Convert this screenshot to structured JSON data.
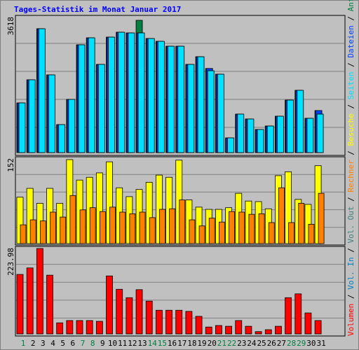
{
  "chart_data": [
    {
      "type": "bar",
      "title": "Tages-Statistik im Monat Januar 2017",
      "categories": [
        "1",
        "2",
        "3",
        "4",
        "5",
        "6",
        "7",
        "8",
        "9",
        "10",
        "11",
        "12",
        "13",
        "14",
        "15",
        "16",
        "17",
        "18",
        "19",
        "20",
        "21",
        "22",
        "23",
        "24",
        "25",
        "26",
        "27",
        "28",
        "29",
        "30",
        "31"
      ],
      "category_colors": [
        "#008040",
        "#000000",
        "#000000",
        "#000000",
        "#000000",
        "#000000",
        "#008040",
        "#008040",
        "#000000",
        "#000000",
        "#000000",
        "#000000",
        "#000000",
        "#008040",
        "#008040",
        "#000000",
        "#000000",
        "#000000",
        "#000000",
        "#000000",
        "#008040",
        "#008040",
        "#000000",
        "#000000",
        "#000000",
        "#000000",
        "#000000",
        "#008040",
        "#008040",
        "#000000",
        "#000000"
      ],
      "ylim": [
        0,
        3618
      ],
      "yticks": [
        3618
      ],
      "series": [
        {
          "name": "Anfragen",
          "color": "#008040",
          "values": [
            1359,
            1991,
            3388,
            2125,
            766,
            1455,
            2948,
            3139,
            2412,
            3158,
            3292,
            3273,
            3618,
            3120,
            3043,
            2909,
            2909,
            2412,
            2622,
            2300,
            2144,
            402,
            1053,
            919,
            632,
            727,
            995,
            1436,
            1703,
            938,
            1150
          ]
        },
        {
          "name": "Dateien",
          "color": "#0040ff",
          "values": [
            1359,
            1991,
            3388,
            2125,
            766,
            1455,
            2948,
            3139,
            2412,
            3158,
            3292,
            3273,
            3273,
            3120,
            3043,
            2909,
            2909,
            2412,
            2622,
            2300,
            2144,
            402,
            1053,
            919,
            632,
            727,
            995,
            1436,
            1703,
            938,
            1150
          ]
        },
        {
          "name": "Seiten",
          "color": "#00e0ff",
          "values": [
            1359,
            1991,
            3388,
            2125,
            766,
            1455,
            2948,
            3139,
            2412,
            3158,
            3292,
            3273,
            3273,
            3120,
            3043,
            2909,
            2909,
            2412,
            2622,
            2239,
            2144,
            402,
            1053,
            919,
            632,
            727,
            995,
            1436,
            1703,
            938,
            1053
          ]
        }
      ]
    },
    {
      "type": "bar",
      "ylim": [
        0,
        152
      ],
      "yticks": [
        152
      ],
      "series": [
        {
          "name": "Besuche",
          "color": "#ffff00",
          "values": [
            84,
            100,
            73,
            100,
            73,
            152,
            115,
            120,
            128,
            148,
            101,
            85,
            98,
            111,
            124,
            120,
            151,
            79,
            66,
            62,
            62,
            65,
            91,
            77,
            76,
            63,
            123,
            130,
            80,
            71,
            141
          ]
        },
        {
          "name": "Rechner",
          "color": "#ff8000",
          "values": [
            34,
            43,
            41,
            57,
            48,
            87,
            61,
            65,
            58,
            66,
            57,
            54,
            57,
            47,
            62,
            63,
            79,
            43,
            32,
            46,
            39,
            58,
            57,
            53,
            54,
            38,
            101,
            38,
            73,
            35,
            91
          ]
        }
      ]
    },
    {
      "type": "bar",
      "ylim": [
        0,
        223.98
      ],
      "yticks": [
        223.98
      ],
      "series": [
        {
          "name": "Volumen",
          "color": "#ff0000",
          "values": [
            156,
            173,
            223.98,
            154,
            29,
            35,
            35,
            35,
            33,
            152,
            117,
            95,
            116,
            86,
            62,
            62,
            62,
            59,
            46,
            18,
            22,
            20,
            35,
            20,
            6,
            11,
            20,
            95,
            105,
            55,
            35
          ]
        }
      ],
      "extra_legend": [
        {
          "name": "Vol. In",
          "color": "#0080c0"
        },
        {
          "name": "Vol. Out",
          "color": "#408080"
        }
      ]
    }
  ],
  "legend_separator": " / "
}
